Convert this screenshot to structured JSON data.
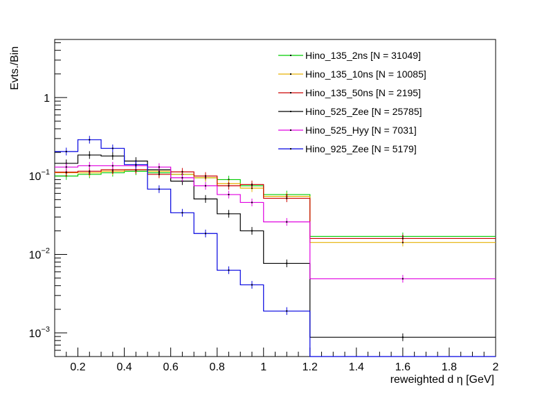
{
  "chart_data": {
    "type": "line",
    "style": "step-histogram",
    "title": "",
    "xlabel": "reweighted d η [GeV]",
    "ylabel": "Evts./Bin",
    "xlim": [
      0.1,
      2.0
    ],
    "ylim": [
      0.0005,
      5.5
    ],
    "yscale": "log",
    "x_ticks": [
      "0.2",
      "0.4",
      "0.6",
      "0.8",
      "1",
      "1.2",
      "1.4",
      "1.6",
      "1.8",
      "2"
    ],
    "y_ticks": [
      {
        "base": "10",
        "exp": "−3",
        "value": 0.001
      },
      {
        "base": "10",
        "exp": "−2",
        "value": 0.01
      },
      {
        "base": "10",
        "exp": "−1",
        "value": 0.1
      },
      {
        "base": "1",
        "exp": "",
        "value": 1
      }
    ],
    "bin_edges": [
      0.1,
      0.2,
      0.3,
      0.4,
      0.5,
      0.6,
      0.7,
      0.8,
      0.9,
      1.0,
      1.2,
      2.0
    ],
    "legend_position": "top-right",
    "series": [
      {
        "name": "Hino_135_2ns [N = 31049]",
        "color": "#00cc00",
        "values": [
          0.1,
          0.105,
          0.11,
          0.115,
          0.11,
          0.105,
          0.095,
          0.09,
          0.075,
          0.058,
          0.017
        ]
      },
      {
        "name": "Hino_135_10ns [N = 10085]",
        "color": "#e6b000",
        "values": [
          0.11,
          0.11,
          0.115,
          0.12,
          0.115,
          0.105,
          0.095,
          0.08,
          0.07,
          0.055,
          0.0142
        ]
      },
      {
        "name": "Hino_135_50ns [N = 2195]",
        "color": "#cc0000",
        "values": [
          0.112,
          0.115,
          0.12,
          0.12,
          0.105,
          0.113,
          0.1,
          0.075,
          0.078,
          0.052,
          0.016
        ]
      },
      {
        "name": "Hino_525_Zee [N = 25785]",
        "color": "#000000",
        "values": [
          0.145,
          0.185,
          0.18,
          0.155,
          0.12,
          0.086,
          0.051,
          0.033,
          0.02,
          0.0077,
          0.00088
        ]
      },
      {
        "name": "Hino_525_Hyy [N = 7031]",
        "color": "#e000e0",
        "values": [
          0.13,
          0.135,
          0.135,
          0.135,
          0.13,
          0.095,
          0.075,
          0.058,
          0.046,
          0.026,
          0.0049
        ]
      },
      {
        "name": "Hino_925_Zee [N = 5179]",
        "color": "#0000e0",
        "values": [
          0.205,
          0.29,
          0.225,
          0.14,
          0.068,
          0.034,
          0.0185,
          0.0063,
          0.0041,
          0.0019,
          0.0
        ]
      }
    ]
  }
}
